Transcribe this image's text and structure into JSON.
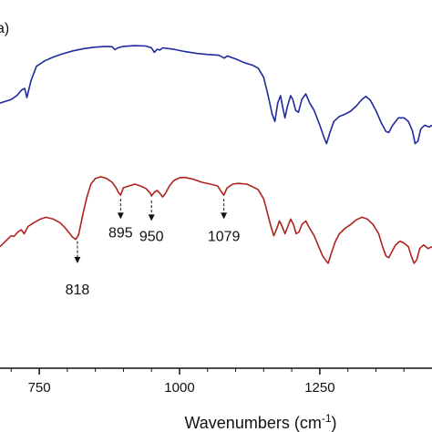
{
  "chart_data": {
    "type": "line",
    "panel_label": "a)",
    "xlabel": "Wavenumbers (cm",
    "xlabel_sup": "-1",
    "xlabel_close": ")",
    "xlim": [
      680,
      1450
    ],
    "ylim": [
      0,
      1
    ],
    "x_ticks": [
      750,
      1000,
      1250
    ],
    "grid": false,
    "series": [
      {
        "color": "#1f2a9e",
        "points": [
          [
            680,
            0.72
          ],
          [
            700,
            0.73
          ],
          [
            710,
            0.74
          ],
          [
            718,
            0.755
          ],
          [
            724,
            0.76
          ],
          [
            728,
            0.735
          ],
          [
            735,
            0.78
          ],
          [
            745,
            0.82
          ],
          [
            760,
            0.835
          ],
          [
            775,
            0.845
          ],
          [
            790,
            0.853
          ],
          [
            810,
            0.862
          ],
          [
            830,
            0.868
          ],
          [
            850,
            0.872
          ],
          [
            870,
            0.874
          ],
          [
            880,
            0.873
          ],
          [
            885,
            0.865
          ],
          [
            890,
            0.87
          ],
          [
            900,
            0.874
          ],
          [
            920,
            0.876
          ],
          [
            940,
            0.875
          ],
          [
            950,
            0.87
          ],
          [
            955,
            0.858
          ],
          [
            960,
            0.866
          ],
          [
            965,
            0.864
          ],
          [
            970,
            0.87
          ],
          [
            990,
            0.866
          ],
          [
            1010,
            0.86
          ],
          [
            1030,
            0.855
          ],
          [
            1050,
            0.852
          ],
          [
            1070,
            0.85
          ],
          [
            1080,
            0.842
          ],
          [
            1085,
            0.848
          ],
          [
            1100,
            0.84
          ],
          [
            1115,
            0.83
          ],
          [
            1130,
            0.823
          ],
          [
            1140,
            0.815
          ],
          [
            1150,
            0.79
          ],
          [
            1158,
            0.74
          ],
          [
            1165,
            0.69
          ],
          [
            1170,
            0.67
          ],
          [
            1175,
            0.72
          ],
          [
            1180,
            0.74
          ],
          [
            1185,
            0.7
          ],
          [
            1188,
            0.68
          ],
          [
            1192,
            0.71
          ],
          [
            1198,
            0.74
          ],
          [
            1202,
            0.73
          ],
          [
            1207,
            0.7
          ],
          [
            1212,
            0.695
          ],
          [
            1218,
            0.73
          ],
          [
            1225,
            0.745
          ],
          [
            1232,
            0.72
          ],
          [
            1240,
            0.7
          ],
          [
            1250,
            0.66
          ],
          [
            1258,
            0.625
          ],
          [
            1262,
            0.61
          ],
          [
            1268,
            0.64
          ],
          [
            1275,
            0.67
          ],
          [
            1285,
            0.684
          ],
          [
            1295,
            0.69
          ],
          [
            1305,
            0.698
          ],
          [
            1315,
            0.712
          ],
          [
            1325,
            0.73
          ],
          [
            1332,
            0.738
          ],
          [
            1340,
            0.728
          ],
          [
            1350,
            0.7
          ],
          [
            1360,
            0.665
          ],
          [
            1368,
            0.643
          ],
          [
            1373,
            0.64
          ],
          [
            1380,
            0.66
          ],
          [
            1390,
            0.68
          ],
          [
            1400,
            0.68
          ],
          [
            1408,
            0.67
          ],
          [
            1415,
            0.645
          ],
          [
            1420,
            0.61
          ],
          [
            1425,
            0.617
          ],
          [
            1430,
            0.65
          ],
          [
            1437,
            0.66
          ],
          [
            1445,
            0.655
          ],
          [
            1450,
            0.66
          ]
        ]
      },
      {
        "color": "#b0221c",
        "points": [
          [
            680,
            0.33
          ],
          [
            690,
            0.345
          ],
          [
            700,
            0.36
          ],
          [
            705,
            0.358
          ],
          [
            712,
            0.37
          ],
          [
            718,
            0.376
          ],
          [
            723,
            0.365
          ],
          [
            730,
            0.385
          ],
          [
            740,
            0.395
          ],
          [
            752,
            0.405
          ],
          [
            762,
            0.41
          ],
          [
            775,
            0.405
          ],
          [
            787,
            0.395
          ],
          [
            795,
            0.383
          ],
          [
            803,
            0.368
          ],
          [
            810,
            0.355
          ],
          [
            815,
            0.35
          ],
          [
            820,
            0.362
          ],
          [
            828,
            0.42
          ],
          [
            835,
            0.465
          ],
          [
            842,
            0.5
          ],
          [
            850,
            0.515
          ],
          [
            860,
            0.52
          ],
          [
            870,
            0.515
          ],
          [
            880,
            0.505
          ],
          [
            887,
            0.49
          ],
          [
            892,
            0.475
          ],
          [
            895,
            0.47
          ],
          [
            900,
            0.49
          ],
          [
            910,
            0.495
          ],
          [
            920,
            0.5
          ],
          [
            930,
            0.495
          ],
          [
            940,
            0.488
          ],
          [
            948,
            0.475
          ],
          [
            950,
            0.468
          ],
          [
            955,
            0.478
          ],
          [
            960,
            0.483
          ],
          [
            965,
            0.475
          ],
          [
            970,
            0.465
          ],
          [
            975,
            0.475
          ],
          [
            982,
            0.495
          ],
          [
            990,
            0.51
          ],
          [
            1000,
            0.517
          ],
          [
            1010,
            0.518
          ],
          [
            1025,
            0.513
          ],
          [
            1040,
            0.505
          ],
          [
            1055,
            0.5
          ],
          [
            1068,
            0.495
          ],
          [
            1075,
            0.478
          ],
          [
            1079,
            0.47
          ],
          [
            1085,
            0.49
          ],
          [
            1095,
            0.5
          ],
          [
            1105,
            0.502
          ],
          [
            1120,
            0.5
          ],
          [
            1130,
            0.493
          ],
          [
            1140,
            0.485
          ],
          [
            1150,
            0.46
          ],
          [
            1157,
            0.42
          ],
          [
            1163,
            0.385
          ],
          [
            1168,
            0.36
          ],
          [
            1173,
            0.378
          ],
          [
            1178,
            0.4
          ],
          [
            1183,
            0.385
          ],
          [
            1188,
            0.365
          ],
          [
            1193,
            0.385
          ],
          [
            1198,
            0.405
          ],
          [
            1203,
            0.39
          ],
          [
            1208,
            0.365
          ],
          [
            1213,
            0.37
          ],
          [
            1218,
            0.39
          ],
          [
            1225,
            0.4
          ],
          [
            1232,
            0.38
          ],
          [
            1240,
            0.36
          ],
          [
            1248,
            0.33
          ],
          [
            1255,
            0.305
          ],
          [
            1262,
            0.29
          ],
          [
            1265,
            0.285
          ],
          [
            1270,
            0.31
          ],
          [
            1278,
            0.345
          ],
          [
            1285,
            0.365
          ],
          [
            1295,
            0.38
          ],
          [
            1305,
            0.39
          ],
          [
            1315,
            0.403
          ],
          [
            1325,
            0.41
          ],
          [
            1335,
            0.405
          ],
          [
            1345,
            0.39
          ],
          [
            1355,
            0.365
          ],
          [
            1362,
            0.33
          ],
          [
            1368,
            0.305
          ],
          [
            1373,
            0.3
          ],
          [
            1378,
            0.315
          ],
          [
            1385,
            0.335
          ],
          [
            1393,
            0.345
          ],
          [
            1400,
            0.34
          ],
          [
            1408,
            0.33
          ],
          [
            1413,
            0.305
          ],
          [
            1418,
            0.285
          ],
          [
            1423,
            0.295
          ],
          [
            1428,
            0.325
          ],
          [
            1435,
            0.335
          ],
          [
            1443,
            0.325
          ],
          [
            1450,
            0.33
          ]
        ]
      }
    ],
    "annotations": [
      {
        "label": "818",
        "x": 818,
        "y_from": 0.345,
        "y_to": 0.285,
        "label_y": 0.2
      },
      {
        "label": "895",
        "x": 895,
        "y_from": 0.46,
        "y_to": 0.405,
        "label_y": 0.355
      },
      {
        "label": "950",
        "x": 950,
        "y_from": 0.455,
        "y_to": 0.4,
        "label_y": 0.345
      },
      {
        "label": "1079",
        "x": 1079,
        "y_from": 0.46,
        "y_to": 0.405,
        "label_y": 0.345
      }
    ]
  }
}
